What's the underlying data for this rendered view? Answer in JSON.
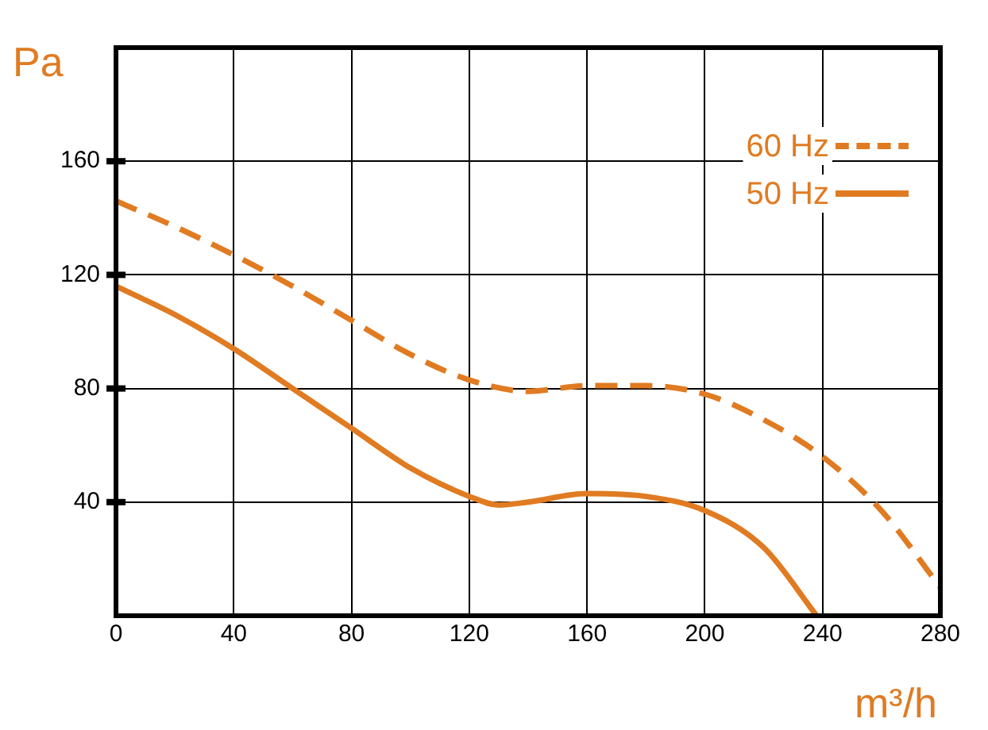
{
  "chart_data": {
    "type": "line",
    "xlabel": "m³/h",
    "ylabel": "Pa",
    "xlim": [
      0,
      280
    ],
    "xticks": [
      0,
      40,
      80,
      120,
      160,
      200,
      240,
      280
    ],
    "ylim": [
      0,
      200
    ],
    "yticks": [
      40,
      80,
      120,
      160
    ],
    "grid": true,
    "legend": "top right",
    "marker": "none",
    "series": [
      {
        "name": "60 Hz",
        "color": "#e07b22",
        "line_style": "dashed",
        "x": [
          0,
          20,
          40,
          60,
          80,
          100,
          120,
          140,
          160,
          180,
          200,
          220,
          240,
          260,
          280
        ],
        "values": [
          146,
          137,
          127,
          116,
          104,
          92,
          83,
          79,
          81,
          81,
          78,
          69,
          56,
          37,
          10
        ]
      },
      {
        "name": "50 Hz",
        "color": "#e07b22",
        "line_style": "solid",
        "x": [
          0,
          20,
          40,
          60,
          80,
          100,
          120,
          130,
          140,
          160,
          180,
          200,
          220,
          238
        ],
        "values": [
          116,
          106,
          94,
          80,
          66,
          52,
          42,
          39,
          40,
          43,
          42,
          37,
          24,
          0
        ]
      }
    ]
  }
}
